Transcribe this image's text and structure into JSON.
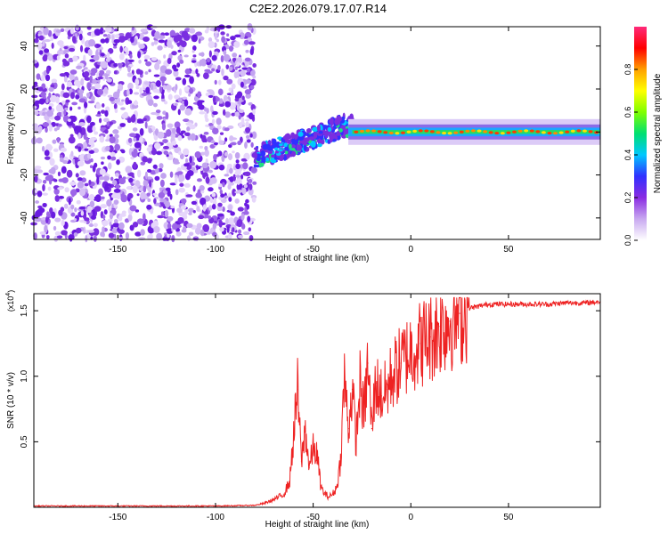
{
  "figure_title": "C2E2.2026.079.17.07.R14",
  "chart_data": [
    {
      "type": "heatmap",
      "title": "C2E2.2026.079.17.07.R14",
      "xlabel": "Height of straight line (km)",
      "ylabel": "Frequency (Hz)",
      "xlim": [
        -193,
        97
      ],
      "ylim": [
        -50,
        49
      ],
      "xticks": [
        -150,
        -100,
        -50,
        0,
        50
      ],
      "yticks": [
        -40,
        -20,
        0,
        20,
        40
      ],
      "colorbar": {
        "label": "Normalized spectral amplitude",
        "range": [
          0.0,
          1.0
        ],
        "ticks": [
          0.0,
          0.2,
          0.4,
          0.6,
          0.8
        ],
        "colors": [
          "#ffffff",
          "#c8a8f0",
          "#8a2be2",
          "#3030ff",
          "#00c8ff",
          "#00e070",
          "#80ff00",
          "#ffff00",
          "#ffa000",
          "#ff0000",
          "#ff2a7a"
        ]
      },
      "regions": [
        {
          "name": "broadband noise",
          "x_range": [
            -193,
            -80
          ],
          "freq_range": [
            -50,
            49
          ],
          "amplitude": 0.2
        },
        {
          "name": "emerging line",
          "x_range": [
            -80,
            -30
          ],
          "center_freq_hz": [
            -10,
            -5,
            3,
            3,
            4
          ],
          "amplitude": 0.5
        },
        {
          "name": "carrier line",
          "x_range": [
            -30,
            97
          ],
          "center_freq_hz": [
            0,
            0,
            1,
            0,
            -1
          ],
          "amplitude": 0.9
        }
      ]
    },
    {
      "type": "line",
      "xlabel": "Height of straight line (km)",
      "ylabel": "SNR (10 * v/v)",
      "y_multiplier": "(x10^4)",
      "y_multiplier_base": "(x10",
      "y_multiplier_exp": "4",
      "xlim": [
        -193,
        97
      ],
      "ylim": [
        0,
        1.63
      ],
      "xticks": [
        -150,
        -100,
        -50,
        0,
        50
      ],
      "yticks": [
        0.5,
        1.0,
        1.5
      ],
      "ytick_labels": [
        "0.5",
        "1.0",
        "1.5"
      ],
      "color": "#ee2222",
      "series": [
        {
          "name": "SNR",
          "x": [
            -193,
            -150,
            -100,
            -80,
            -75,
            -70,
            -65,
            -62,
            -60,
            -58,
            -56,
            -54,
            -52,
            -50,
            -48,
            -46,
            -44,
            -42,
            -40,
            -38,
            -36,
            -34,
            -32,
            -30,
            -28,
            -26,
            -24,
            -22,
            -20,
            -18,
            -15,
            -12,
            -10,
            -5,
            0,
            5,
            10,
            15,
            20,
            25,
            30,
            40,
            50,
            60,
            70,
            80,
            90,
            97
          ],
          "values": [
            0.01,
            0.01,
            0.01,
            0.015,
            0.03,
            0.06,
            0.1,
            0.2,
            0.55,
            0.9,
            0.35,
            0.6,
            0.3,
            0.45,
            0.4,
            0.15,
            0.1,
            0.08,
            0.1,
            0.15,
            0.35,
            1.0,
            0.6,
            0.9,
            0.5,
            0.95,
            0.7,
            1.1,
            0.6,
            0.95,
            0.85,
            0.9,
            1.0,
            1.1,
            1.2,
            1.25,
            1.3,
            1.38,
            1.42,
            1.48,
            1.52,
            1.55,
            1.55,
            1.55,
            1.55,
            1.56,
            1.56,
            1.57
          ]
        }
      ]
    }
  ]
}
